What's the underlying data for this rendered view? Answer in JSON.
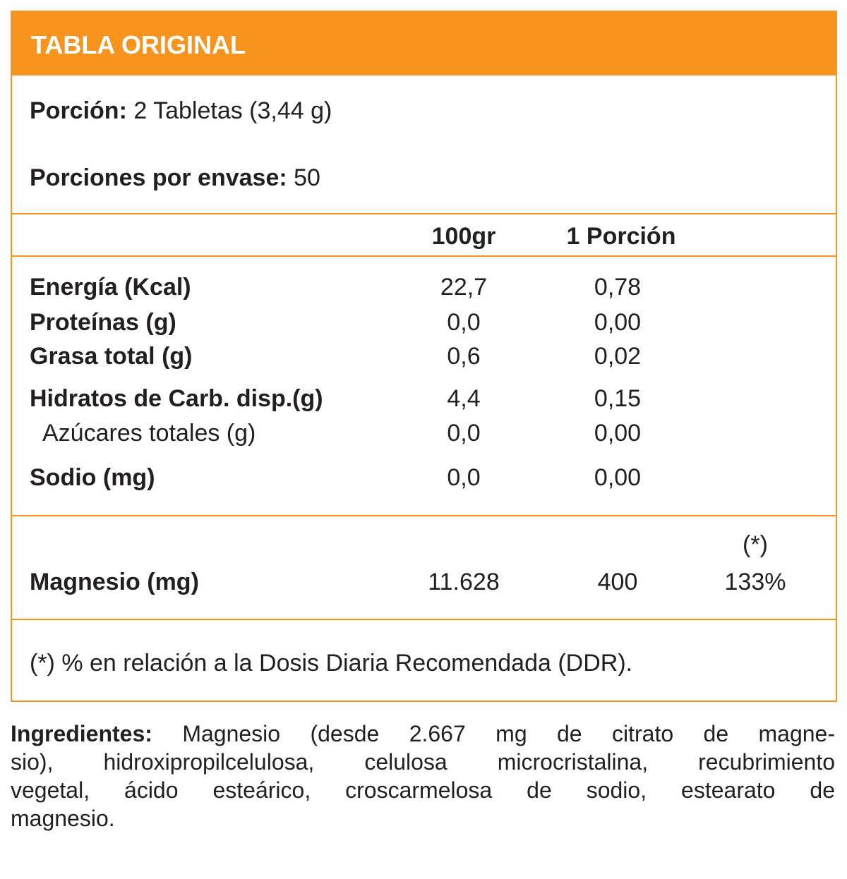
{
  "header": {
    "title": "TABLA ORIGINAL"
  },
  "portion": {
    "label": "Porción:",
    "value": "2 Tabletas (3,44 g)"
  },
  "servings": {
    "label": "Porciones por envase:",
    "value": "50"
  },
  "table": {
    "columns": [
      "100gr",
      "1 Porción"
    ],
    "rows": [
      [
        "Energía (Kcal)",
        "22,7",
        "0,78"
      ],
      [
        "Proteínas (g)",
        "0,0",
        "0,00"
      ],
      [
        "Grasa total (g)",
        "0,6",
        "0,02"
      ],
      [
        "Hidratos de Carb. disp.(g)",
        "4,4",
        "0,15"
      ],
      [
        "Azúcares totales (g)",
        "0,0",
        "0,00"
      ],
      [
        "Sodio (mg)",
        "0,0",
        "0,00"
      ]
    ]
  },
  "magnesium": {
    "label": "Magnesio (mg)",
    "per_100": "11.628",
    "per_portion": "400",
    "note": "(*)",
    "percent": "133%"
  },
  "footnote": "(*) % en relación a la Dosis Diaria Recomendada (DDR).",
  "ingredients": {
    "label": "Ingredientes:",
    "lines": [
      "Magnesio (desde 2.667 mg de citrato de magne-",
      "sio), hidroxipropilcelulosa, celulosa microcristalina, recubrimiento",
      "vegetal, ácido esteárico, croscarmelosa de sodio, estearato de",
      "magnesio."
    ]
  }
}
